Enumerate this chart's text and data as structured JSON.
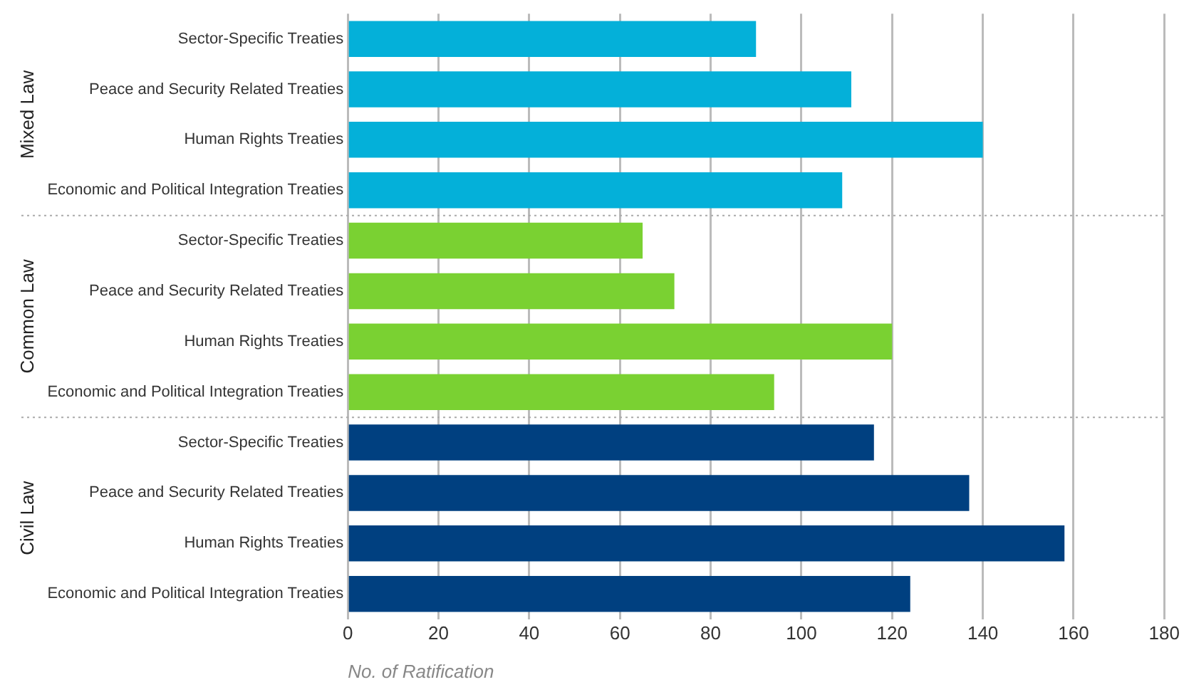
{
  "chart_data": {
    "type": "bar",
    "orientation": "horizontal",
    "xlabel": "No. of Ratification",
    "categories": [
      "Sector-Specific Treaties",
      "Peace and Security Related Treaties",
      "Human Rights Treaties",
      "Economic and Political Integration Treaties",
      "Sector-Specific Treaties",
      "Peace and Security Related Treaties",
      "Human Rights Treaties",
      "Economic and Political Integration Treaties",
      "Sector-Specific Treaties",
      "Peace and Security Related Treaties",
      "Human Rights Treaties",
      "Economic and Political Integration Treaties"
    ],
    "values": [
      90,
      111,
      140,
      109,
      65,
      72,
      120,
      94,
      116,
      137,
      158,
      124
    ],
    "colors": [
      "#04b0d9",
      "#04b0d9",
      "#04b0d9",
      "#04b0d9",
      "#7ad132",
      "#7ad132",
      "#7ad132",
      "#7ad132",
      "#004080",
      "#004080",
      "#004080",
      "#004080"
    ],
    "annotations": [
      "Mixed Law",
      "Common Law",
      "Civil Law"
    ],
    "xlim": [
      0,
      180
    ],
    "xticks": [
      0,
      20,
      40,
      60,
      80,
      100,
      120,
      140,
      160,
      180
    ],
    "grid": "x",
    "legend": false
  }
}
